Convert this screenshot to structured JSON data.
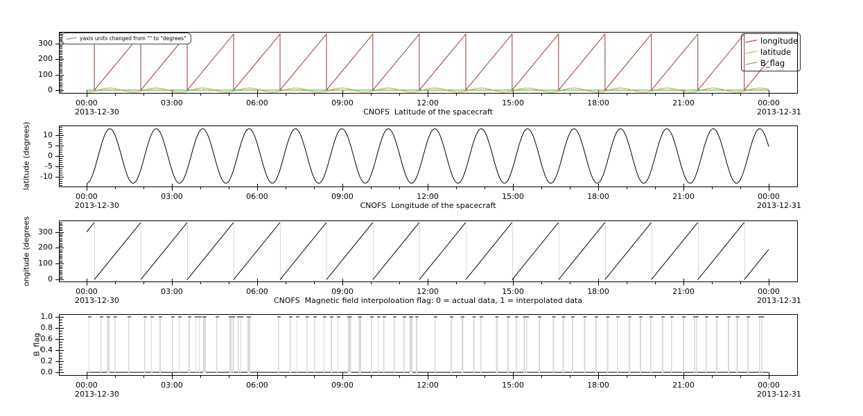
{
  "window": {
    "background": "#ffffff",
    "axes_color": "#000000",
    "wrap_line_gray": "#d9d9d9"
  },
  "x_axis": {
    "tick_labels": [
      "00:00",
      "03:00",
      "06:00",
      "09:00",
      "12:00",
      "15:00",
      "18:00",
      "21:00",
      "00:00"
    ],
    "tick_hours": [
      0,
      3,
      6,
      9,
      12,
      15,
      18,
      21,
      24
    ],
    "minor_step_h": 1,
    "xlim_h": [
      -0.975,
      25.0
    ],
    "date_start": "2013-12-30",
    "date_end": "2013-12-31"
  },
  "annotation": {
    "text": "yaxis units changed from \"\" to \"degrees\"",
    "line_color": "#3faa3f"
  },
  "legend": {
    "position": "top-right",
    "items": [
      {
        "label": "longitude",
        "color": "#a03434"
      },
      {
        "label": "latitude",
        "color": "#b8a83a"
      },
      {
        "label": "B_flag",
        "color": "#3faa3f"
      }
    ]
  },
  "chart_data": [
    {
      "type": "line",
      "title": "",
      "ylabel": "",
      "ylim": [
        -18,
        374
      ],
      "yticks": [
        0,
        100,
        200,
        300
      ],
      "ytick_labels": [
        "0",
        "100",
        "200",
        "300"
      ],
      "minor_step": 10,
      "grid": false,
      "series": [
        {
          "name": "longitude",
          "color": "#a03434",
          "kind": "sawtooth",
          "period_h": 1.6333,
          "start_deg": 300,
          "wrap_deg": 360,
          "wrap_line": "self"
        },
        {
          "name": "latitude",
          "color": "#b8a83a",
          "kind": "cosine",
          "amplitude_deg": 13.2,
          "period_h": 1.6333,
          "phase": "min_at_start"
        },
        {
          "name": "B_flag",
          "color": "#3faa3f",
          "kind": "flag"
        }
      ]
    },
    {
      "type": "line",
      "title": "CNOFS  Latitude of the spacecraft",
      "ylabel": "latitude (degrees)",
      "ylim": [
        -14.8,
        14.8
      ],
      "yticks": [
        -10,
        -5,
        0,
        5,
        10
      ],
      "ytick_labels": [
        "-10",
        "-5",
        "0",
        "5",
        "10"
      ],
      "minor_step": 1,
      "grid": false,
      "series": [
        {
          "name": "latitude",
          "color": "#000000",
          "kind": "cosine",
          "amplitude_deg": 13.2,
          "period_h": 1.6333,
          "phase": "min_at_start"
        }
      ]
    },
    {
      "type": "line",
      "title": "CNOFS  Longitude of the spacecraft",
      "ylabel": "longitude (degrees)",
      "ylim": [
        -12,
        372
      ],
      "yticks": [
        0,
        100,
        200,
        300
      ],
      "ytick_labels": [
        "0",
        "100",
        "200",
        "300"
      ],
      "minor_step": 10,
      "grid": false,
      "series": [
        {
          "name": "longitude",
          "color": "#000000",
          "kind": "sawtooth",
          "period_h": 1.6333,
          "start_deg": 300,
          "wrap_deg": 360,
          "wrap_line": "#d9d9d9"
        }
      ]
    },
    {
      "type": "line",
      "title": "CNOFS  Magnetic field interpoloation flag: 0 = actual data, 1 = interpolated data",
      "ylabel": "B_flag",
      "ylim": [
        -0.05,
        1.05
      ],
      "yticks": [
        0,
        0.2,
        0.4,
        0.6,
        0.8,
        1.0
      ],
      "ytick_labels": [
        "0.0",
        "0.2",
        "0.4",
        "0.6",
        "0.8",
        "1.0"
      ],
      "minor_step": 0.05,
      "grid": false,
      "series": [
        {
          "name": "B_flag",
          "color": "#000000",
          "kind": "flag",
          "wrap_line": "#d9d9d9"
        }
      ]
    }
  ],
  "b_flag_intervals_h": [
    [
      0.07,
      0.03
    ],
    [
      0.49,
      0.03
    ],
    [
      0.72,
      0.08
    ],
    [
      0.98,
      0.03
    ],
    [
      1.46,
      0.04
    ],
    [
      2.02,
      0.04
    ],
    [
      2.27,
      0.03
    ],
    [
      2.56,
      0.05
    ],
    [
      3.0,
      0.04
    ],
    [
      3.24,
      0.03
    ],
    [
      3.59,
      0.04
    ],
    [
      3.83,
      0.03
    ],
    [
      3.95,
      0.03
    ],
    [
      4.1,
      0.09
    ],
    [
      4.56,
      0.04
    ],
    [
      5.02,
      0.08
    ],
    [
      5.14,
      0.04
    ],
    [
      5.32,
      0.03
    ],
    [
      5.41,
      0.03
    ],
    [
      5.66,
      0.1
    ],
    [
      6.73,
      0.04
    ],
    [
      7.15,
      0.04
    ],
    [
      7.39,
      0.03
    ],
    [
      7.73,
      0.04
    ],
    [
      8.0,
      0.04
    ],
    [
      8.34,
      0.03
    ],
    [
      8.59,
      0.04
    ],
    [
      8.83,
      0.03
    ],
    [
      9.2,
      0.1
    ],
    [
      9.57,
      0.09
    ],
    [
      10.0,
      0.04
    ],
    [
      10.24,
      0.03
    ],
    [
      10.44,
      0.04
    ],
    [
      10.8,
      0.04
    ],
    [
      11.15,
      0.03
    ],
    [
      11.37,
      0.09
    ],
    [
      11.59,
      0.04
    ],
    [
      12.24,
      0.04
    ],
    [
      12.8,
      0.05
    ],
    [
      13.2,
      0.06
    ],
    [
      13.6,
      0.05
    ],
    [
      13.85,
      0.04
    ],
    [
      14.4,
      0.06
    ],
    [
      14.8,
      0.05
    ],
    [
      15.1,
      0.04
    ],
    [
      15.38,
      0.05
    ],
    [
      15.46,
      0.04
    ],
    [
      15.9,
      0.05
    ],
    [
      16.4,
      0.05
    ],
    [
      16.75,
      0.04
    ],
    [
      17.07,
      0.05
    ],
    [
      17.5,
      0.05
    ],
    [
      17.9,
      0.05
    ],
    [
      18.3,
      0.05
    ],
    [
      18.66,
      0.04
    ],
    [
      19.07,
      0.05
    ],
    [
      19.46,
      0.05
    ],
    [
      19.83,
      0.04
    ],
    [
      20.24,
      0.05
    ],
    [
      20.56,
      0.04
    ],
    [
      20.97,
      0.05
    ],
    [
      21.36,
      0.04
    ],
    [
      21.44,
      0.04
    ],
    [
      21.78,
      0.04
    ],
    [
      22.15,
      0.05
    ],
    [
      22.56,
      0.05
    ],
    [
      22.87,
      0.04
    ],
    [
      23.24,
      0.05
    ],
    [
      23.66,
      0.04
    ],
    [
      23.74,
      0.04
    ]
  ]
}
